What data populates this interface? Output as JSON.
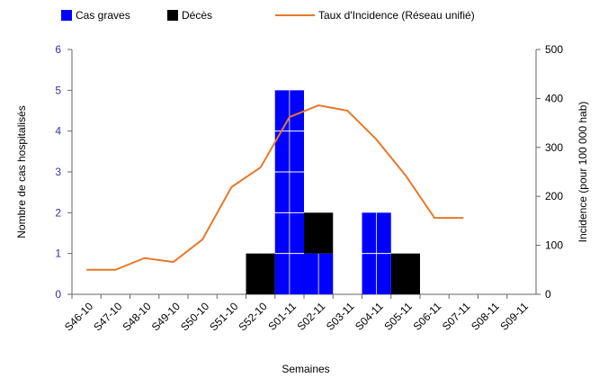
{
  "chart_data": {
    "type": "bar",
    "categories": [
      "S46-10",
      "S47-10",
      "S48-10",
      "S49-10",
      "S50-10",
      "S51-10",
      "S52-10",
      "S01-11",
      "S02-11",
      "S03-11",
      "S04-11",
      "S05-11",
      "S06-11",
      "S07-11",
      "S08-11",
      "S09-11"
    ],
    "series": [
      {
        "name": "Cas graves",
        "color": "#0000ff",
        "type": "bar",
        "values": [
          0,
          0,
          0,
          0,
          0,
          0,
          0,
          5,
          1,
          0,
          2,
          0,
          0,
          0,
          0,
          0
        ]
      },
      {
        "name": "Décès",
        "color": "#000000",
        "type": "bar",
        "values": [
          0,
          0,
          0,
          0,
          0,
          0,
          1,
          0,
          1,
          0,
          0,
          1,
          0,
          0,
          0,
          0
        ]
      },
      {
        "name": "Taux d'Incidence (Réseau unifié)",
        "color": "#e8782a",
        "type": "line",
        "axis": "y2",
        "values": [
          50,
          50,
          74,
          66,
          112,
          219,
          259,
          362,
          386,
          375,
          316,
          243,
          156,
          156,
          null,
          null
        ]
      }
    ],
    "stacked": true,
    "xlabel": "Semaines",
    "ylabel": "Nombre de cas hospitalisés",
    "y2label": "Incidence (pour 100 000 hab)",
    "ylim": [
      0,
      6
    ],
    "yticks": [
      0,
      1,
      2,
      3,
      4,
      5,
      6
    ],
    "y2lim": [
      0,
      500
    ],
    "y2ticks": [
      0,
      100,
      200,
      300,
      400,
      500
    ],
    "legend": "top"
  }
}
